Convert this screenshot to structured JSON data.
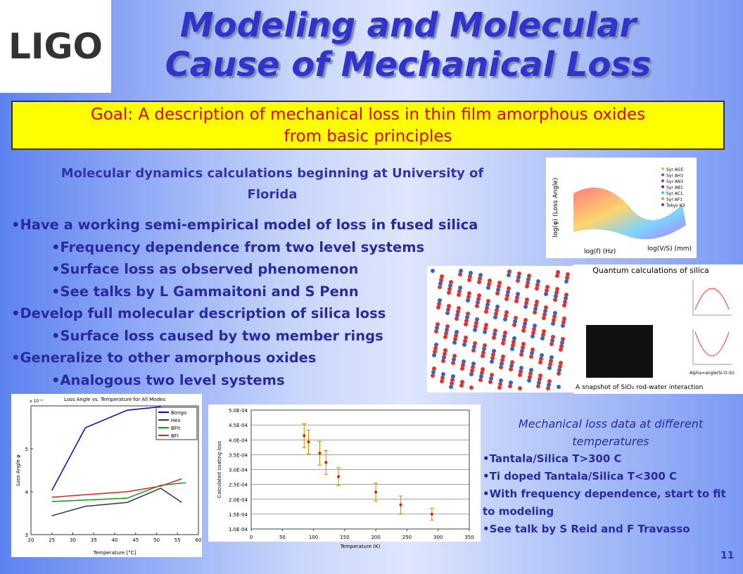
{
  "header": {
    "logo": "LIGO",
    "title_lines": [
      "Modeling and Molecular",
      "Cause of Mechanical Loss"
    ],
    "page_number": "11"
  },
  "goal": {
    "lines": [
      "Goal: A description of mechanical loss in thin film amorphous oxides",
      "from basic principles"
    ]
  },
  "md_heading": {
    "lines": [
      "Molecular dynamics calculations beginning at University of",
      "Florida"
    ]
  },
  "bullets": [
    {
      "text": "Have a working semi-empirical model of loss in fused silica",
      "level": 1
    },
    {
      "text": "Frequency dependence from two level systems",
      "level": 2
    },
    {
      "text": "Surface loss as observed phenomenon",
      "level": 2
    },
    {
      "text": "See talks by L Gammaitoni and S Penn",
      "level": 2
    },
    {
      "text": "Develop full molecular description of silica loss",
      "level": 1
    },
    {
      "text": "Surface loss caused by two member rings",
      "level": 2
    },
    {
      "text": "Generalize to other amorphous oxides",
      "level": 1
    },
    {
      "text": "Analogous two level systems",
      "level": 2
    }
  ],
  "figure_3d": {
    "z_label": "log(φ) (Loss Angle)",
    "x_label": "log(f) (Hz)",
    "y_label": "log(V/S) (mm)",
    "legend": [
      "Syr AG5",
      "Syr AH1",
      "Syr AN3",
      "Syr AB1",
      "Syr AC1",
      "Syr AF1",
      "Tokyo K3"
    ]
  },
  "figure_quantum": {
    "title": "Quantum calculations of silica",
    "caption": "A snapshot of SiO₂ rod-water interaction",
    "axis_label": "Alpha=angle(Si-O-Si)"
  },
  "chart_left": {
    "type": "line",
    "title": "Loss Angle vs. Temperature for All Modes",
    "x_label": "Temperature [°C]",
    "y_label": "Loss Angle φ",
    "y_exponent": "x 10⁻⁴",
    "xlim": [
      20,
      60
    ],
    "xticks": [
      20,
      25,
      30,
      35,
      40,
      45,
      50,
      55,
      60
    ],
    "ylim": [
      3,
      6
    ],
    "yticks": [
      3,
      4,
      5
    ],
    "legend": "upper right",
    "series": [
      {
        "name": "Bongo",
        "color": "#0000cc",
        "x": [
          25,
          33,
          43,
          51
        ],
        "values": [
          4.03,
          5.49,
          5.9,
          5.98
        ]
      },
      {
        "name": "Hex",
        "color": "#3a2f4f",
        "x": [
          25,
          33,
          43,
          51,
          56
        ],
        "values": [
          3.44,
          3.66,
          3.75,
          4.08,
          3.75
        ]
      },
      {
        "name": "BFh",
        "color": "#119911",
        "x": [
          25,
          43,
          51,
          57
        ],
        "values": [
          3.77,
          3.85,
          4.15,
          4.21
        ]
      },
      {
        "name": "BFl",
        "color": "#dd2222",
        "x": [
          25,
          33,
          43,
          51,
          56
        ],
        "values": [
          3.87,
          3.93,
          4.0,
          4.13,
          4.3
        ]
      }
    ]
  },
  "chart_right": {
    "type": "scatter",
    "x_label": "Temperature (K)",
    "y_label": "Calculated coating loss",
    "color": "#cc2200",
    "error_color": "#cc8800",
    "grid": true,
    "xlim": [
      0,
      350
    ],
    "xticks": [
      0,
      50,
      100,
      150,
      200,
      250,
      300,
      350
    ],
    "ylim": [
      0.0001,
      0.0005
    ],
    "yticks": [
      {
        "value": 0.0001,
        "label": "1.0E-04"
      },
      {
        "value": 0.00015,
        "label": "1.5E-04"
      },
      {
        "value": 0.0002,
        "label": "2.0E-04"
      },
      {
        "value": 0.00025,
        "label": "2.5E-04"
      },
      {
        "value": 0.0003,
        "label": "3.0E-04"
      },
      {
        "value": 0.00035,
        "label": "3.5E-04"
      },
      {
        "value": 0.0004,
        "label": "4.0E-04"
      },
      {
        "value": 0.00045,
        "label": "4.5E-04"
      },
      {
        "value": 0.0005,
        "label": "5.0E-04"
      }
    ],
    "x": [
      85,
      92,
      110,
      120,
      140,
      200,
      240,
      290
    ],
    "values": [
      0.000414,
      0.000393,
      0.000355,
      0.000324,
      0.000276,
      0.000224,
      0.000181,
      0.00015
    ],
    "errors": [
      4e-05,
      4e-05,
      4e-05,
      4e-05,
      3e-05,
      3e-05,
      3e-05,
      2e-05
    ]
  },
  "right_text": {
    "heading_lines": [
      "Mechanical loss data at different",
      "temperatures"
    ],
    "bullets": [
      "Tantala/Silica T>300 C",
      "Ti doped Tantala/Silica T<300 C",
      "With frequency dependence, start to fit to modeling",
      "See talk by S Reid and F Travasso"
    ]
  }
}
